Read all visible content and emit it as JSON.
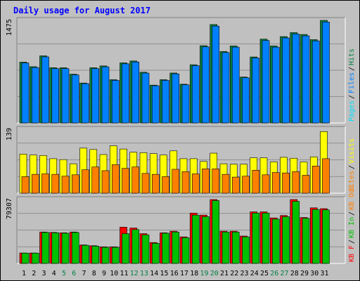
{
  "title": "Daily usage for August 2017",
  "colors": {
    "background": "#c0c0c0",
    "title": "#0000ff",
    "hits": "#008040",
    "files": "#0080ff",
    "pages": "#00e0ff",
    "visits": "#ffff00",
    "sites": "#ff8000",
    "kb_out": "#ff8000",
    "kb_in": "#00c000",
    "kb_f": "#ff0000",
    "weekend_label": "#008040"
  },
  "chart_data": [
    {
      "type": "bar",
      "panel": "hits-files-pages",
      "max_label": "1475",
      "ylim": [
        0,
        1475
      ],
      "legend": [
        {
          "key": "pages",
          "text": "Pages"
        },
        {
          "key": "files",
          "text": "Files"
        },
        {
          "key": "hits",
          "text": "Hits"
        }
      ],
      "series": [
        {
          "key": "hits",
          "values": [
            874,
            809,
            965,
            794,
            794,
            701,
            574,
            794,
            820,
            622,
            864,
            891,
            729,
            544,
            622,
            718,
            557,
            837,
            1111,
            1415,
            1028,
            1107,
            660,
            949,
            1205,
            1107,
            1242,
            1299,
            1272,
            1198,
            1475
          ]
        },
        {
          "key": "files",
          "values": [
            862,
            797,
            950,
            781,
            781,
            690,
            565,
            781,
            807,
            612,
            850,
            877,
            717,
            535,
            612,
            706,
            548,
            824,
            1094,
            1393,
            1012,
            1090,
            650,
            934,
            1186,
            1090,
            1223,
            1279,
            1252,
            1180,
            1452
          ]
        }
      ]
    },
    {
      "type": "bar",
      "panel": "visits-sites",
      "max_label": "139",
      "ylim": [
        0,
        139
      ],
      "legend": [
        {
          "key": "sites",
          "text": "Sites"
        },
        {
          "key": "visits",
          "text": "Visits"
        }
      ],
      "series": [
        {
          "key": "visits",
          "values": [
            85,
            83,
            82,
            75,
            73,
            64,
            98,
            95,
            84,
            103,
            96,
            89,
            88,
            86,
            83,
            92,
            75,
            75,
            69,
            87,
            64,
            63,
            63,
            77,
            77,
            68,
            78,
            76,
            68,
            79,
            134
          ]
        },
        {
          "key": "sites",
          "values": [
            36,
            41,
            42,
            41,
            37,
            40,
            51,
            57,
            49,
            62,
            54,
            57,
            43,
            41,
            36,
            52,
            47,
            42,
            53,
            53,
            41,
            35,
            37,
            50,
            40,
            45,
            44,
            47,
            39,
            59,
            75
          ]
        }
      ]
    },
    {
      "type": "bar",
      "panel": "kb",
      "max_label": "79307",
      "ylim": [
        0,
        79307
      ],
      "legend": [
        {
          "key": "kb_f",
          "text": "KB F"
        },
        {
          "key": "kb_in",
          "text": "KB In"
        },
        {
          "key": "kb_out",
          "text": "KB Out"
        }
      ],
      "series": [
        {
          "key": "kb_f",
          "values": [
            13000,
            13000,
            39000,
            38500,
            38000,
            39000,
            23000,
            22000,
            20500,
            20500,
            45000,
            44000,
            37000,
            26000,
            38000,
            40000,
            33000,
            62500,
            60000,
            79300,
            40000,
            40000,
            34000,
            64000,
            64000,
            56500,
            59500,
            79300,
            57000,
            69000,
            68000
          ]
        },
        {
          "key": "kb_in",
          "values": [
            12800,
            12800,
            38500,
            38000,
            37500,
            38500,
            22500,
            21500,
            20000,
            20000,
            37000,
            42000,
            35500,
            25000,
            37500,
            39000,
            32000,
            60000,
            58000,
            78000,
            39000,
            39000,
            33000,
            62500,
            62500,
            55000,
            58000,
            77000,
            56000,
            67000,
            66500
          ]
        }
      ]
    }
  ],
  "days": [
    "1",
    "2",
    "3",
    "4",
    "5",
    "6",
    "7",
    "8",
    "9",
    "10",
    "11",
    "12",
    "13",
    "14",
    "15",
    "16",
    "17",
    "18",
    "19",
    "20",
    "21",
    "22",
    "23",
    "24",
    "25",
    "26",
    "27",
    "28",
    "29",
    "30",
    "31"
  ],
  "weekend_days": [
    5,
    6,
    12,
    13,
    19,
    20,
    26,
    27
  ]
}
